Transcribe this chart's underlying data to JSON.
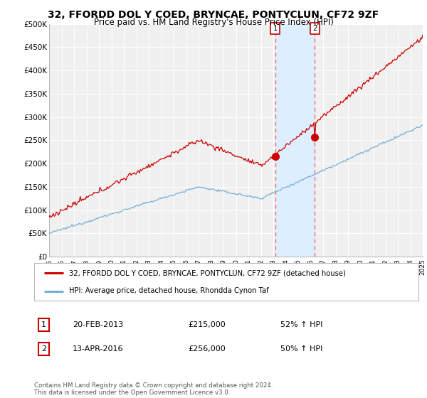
{
  "title": "32, FFORDD DOL Y COED, BRYNCAE, PONTYCLUN, CF72 9ZF",
  "subtitle": "Price paid vs. HM Land Registry's House Price Index (HPI)",
  "title_fontsize": 10,
  "subtitle_fontsize": 8.5,
  "ylabel_vals": [
    0,
    50000,
    100000,
    150000,
    200000,
    250000,
    300000,
    350000,
    400000,
    450000,
    500000
  ],
  "ylabel_labels": [
    "£0",
    "£50K",
    "£100K",
    "£150K",
    "£200K",
    "£250K",
    "£300K",
    "£350K",
    "£400K",
    "£450K",
    "£500K"
  ],
  "ylim": [
    0,
    500000
  ],
  "background_color": "#ffffff",
  "plot_bg_color": "#f0f0f0",
  "grid_color": "#ffffff",
  "red_line_color": "#cc0000",
  "blue_line_color": "#7aaed6",
  "vline_color": "#ff6666",
  "highlight_color": "#ddeeff",
  "legend_entry1": "32, FFORDD DOL Y COED, BRYNCAE, PONTYCLUN, CF72 9ZF (detached house)",
  "legend_entry2": "HPI: Average price, detached house, Rhondda Cynon Taf",
  "table_row1_label": "1",
  "table_row1_date": "20-FEB-2013",
  "table_row1_price": "£215,000",
  "table_row1_hpi": "52% ↑ HPI",
  "table_row2_label": "2",
  "table_row2_date": "13-APR-2016",
  "table_row2_price": "£256,000",
  "table_row2_hpi": "50% ↑ HPI",
  "footer": "Contains HM Land Registry data © Crown copyright and database right 2024.\nThis data is licensed under the Open Government Licence v3.0.",
  "point1_year": 2013.13,
  "point1_value": 215000,
  "point2_year": 2016.28,
  "point2_value": 256000,
  "xstart": 1995,
  "xend": 2025
}
